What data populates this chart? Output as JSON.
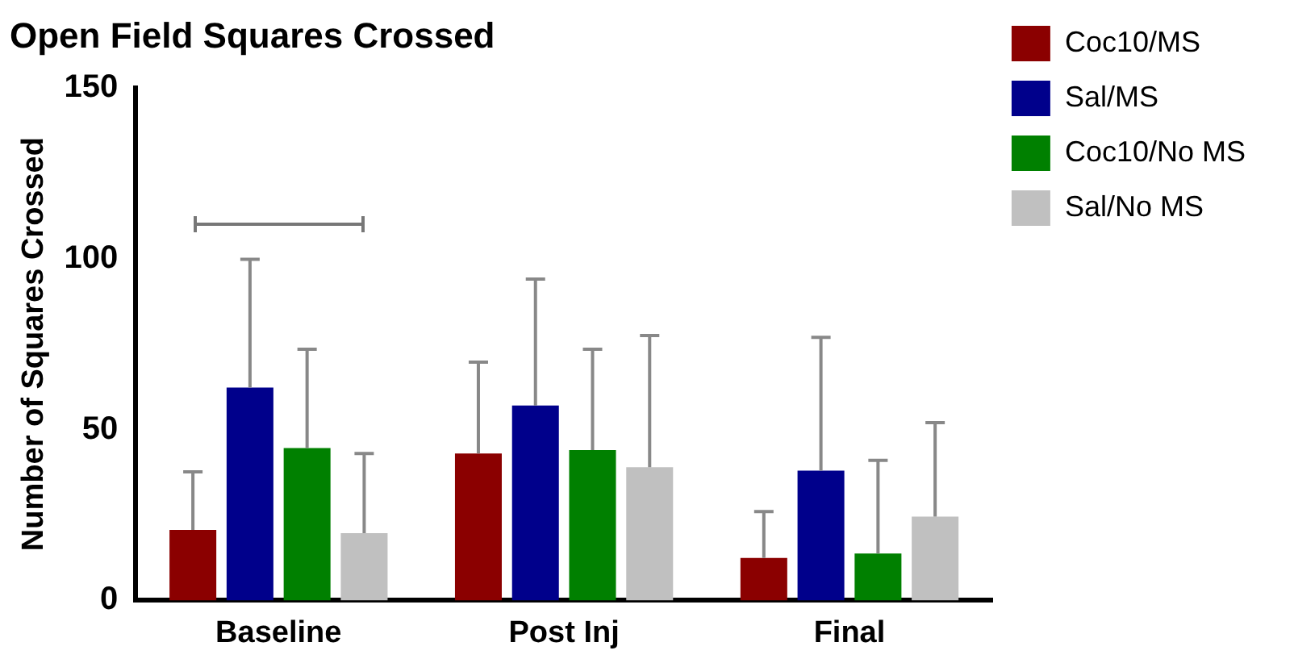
{
  "chart_data": {
    "type": "bar",
    "title": "Open Field Squares Crossed",
    "ylabel": "Number of Squares Crossed",
    "categories": [
      "Baseline",
      "Post Inj",
      "Final"
    ],
    "series": [
      {
        "name": "Coc10/MS",
        "color": "#8b0000",
        "values": [
          20.6,
          43,
          12.4
        ],
        "errors": [
          [
            20.6,
            37.6
          ],
          [
            43,
            69.7
          ],
          [
            12.4,
            26
          ]
        ]
      },
      {
        "name": "Sal/MS",
        "color": "#00008b",
        "values": [
          62.3,
          57,
          38
        ],
        "errors": [
          [
            62.3,
            99.8
          ],
          [
            57,
            94
          ],
          [
            38,
            77
          ]
        ]
      },
      {
        "name": "Coc10/No MS",
        "color": "#008000",
        "values": [
          44.6,
          44,
          13.7
        ],
        "errors": [
          [
            44.6,
            73.5
          ],
          [
            44,
            73.5
          ],
          [
            13.7,
            41
          ]
        ]
      },
      {
        "name": "Sal/No MS",
        "color": "#c0c0c0",
        "values": [
          19.7,
          39,
          24.5
        ],
        "errors": [
          [
            19.7,
            43
          ],
          [
            39,
            77.5
          ],
          [
            24.5,
            52
          ]
        ]
      }
    ],
    "ylim": [
      0,
      150
    ],
    "yticks": [
      0,
      50,
      100,
      150
    ],
    "grid": false,
    "legend": "right"
  }
}
